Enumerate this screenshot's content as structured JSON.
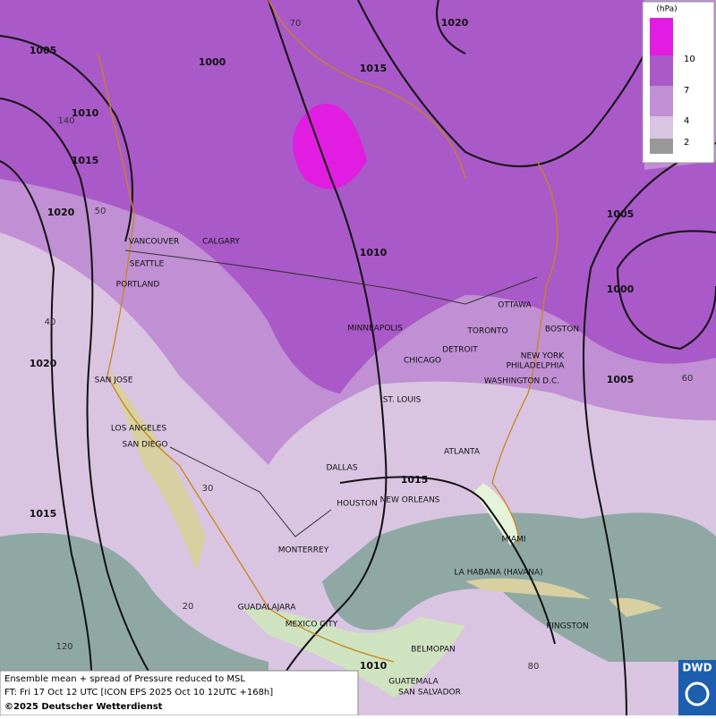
{
  "legend": {
    "unit": "(hPa)",
    "levels": [
      10,
      7,
      4,
      2
    ]
  },
  "isobar_labels": [
    "1005",
    "1000",
    "1020",
    "1015",
    "1010",
    "1015",
    "1020",
    "1010",
    "1005",
    "1000",
    "1020",
    "1005",
    "1015",
    "1015",
    "1010"
  ],
  "grid_labels": [
    "70",
    "50",
    "40",
    "30",
    "20",
    "140",
    "120",
    "60",
    "80"
  ],
  "cities": [
    "VANCOUVER",
    "CALGARY",
    "SEATTLE",
    "PORTLAND",
    "MINNEAPOLIS",
    "OTTAWA",
    "TORONTO",
    "BOSTON",
    "DETROIT",
    "CHICAGO",
    "NEW YORK",
    "PHILADELPHIA",
    "WASHINGTON D.C.",
    "SAN JOSE",
    "ST. LOUIS",
    "LOS ANGELES",
    "SAN DIEGO",
    "ATLANTA",
    "DALLAS",
    "HOUSTON",
    "NEW ORLEANS",
    "MIAMI",
    "MONTERREY",
    "LA HABANA (HAVANA)",
    "GUADALAJARA",
    "MEXICO CITY",
    "KINGSTON",
    "BELMOPAN",
    "GUATEMALA",
    "SAN SALVADOR"
  ],
  "footer": {
    "line1": "Ensemble mean + spread of Pressure reduced to MSL",
    "line2": "FT: Fri 17 Oct 12 UTC [ICON EPS 2025 Oct 10 12UTC +168h]",
    "line3": "©2025 Deutscher Wetterdienst"
  },
  "logo": "DWD"
}
